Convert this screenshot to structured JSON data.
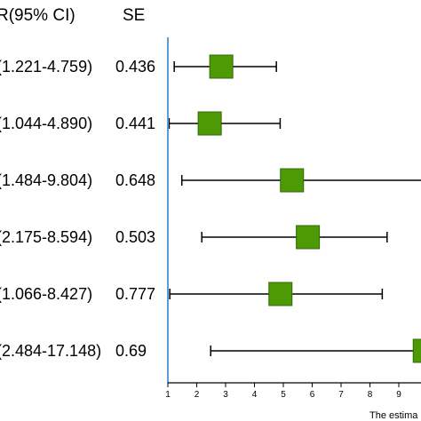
{
  "chart_data": {
    "type": "forest",
    "column_headers": {
      "ci": "R(95% CI)",
      "se": "SE"
    },
    "rows": [
      {
        "ci_label": "(1.221-4.759)",
        "se_label": "0.436",
        "estimate": 2.85,
        "lower": 1.221,
        "upper": 4.759
      },
      {
        "ci_label": "(1.044-4.890)",
        "se_label": "0.441",
        "estimate": 2.45,
        "lower": 1.044,
        "upper": 4.89
      },
      {
        "ci_label": "(1.484-9.804)",
        "se_label": "0.648",
        "estimate": 5.3,
        "lower": 1.484,
        "upper": 9.804
      },
      {
        "ci_label": "(2.175-8.594)",
        "se_label": "0.503",
        "estimate": 5.85,
        "lower": 2.175,
        "upper": 8.594
      },
      {
        "ci_label": "(1.066-8.427)",
        "se_label": "0.777",
        "estimate": 4.9,
        "lower": 1.066,
        "upper": 8.427
      },
      {
        "ci_label": "(2.484-17.148)",
        "se_label": "0.69",
        "estimate": 9.9,
        "lower": 2.484,
        "upper": 17.148
      }
    ],
    "x_axis": {
      "ticks": [
        1,
        2,
        3,
        4,
        5,
        6,
        7,
        8,
        9
      ],
      "tick_labels": [
        "1",
        "2",
        "3",
        "4",
        "5",
        "6",
        "7",
        "8",
        "9"
      ],
      "label": "The estima",
      "xlim": [
        1,
        10
      ]
    },
    "reference_line_x": 1,
    "colors": {
      "marker": "#4e9a06",
      "marker_stroke": "#2f6b00",
      "reference_line": "#5b9bd5",
      "ci_line": "#000000"
    }
  }
}
